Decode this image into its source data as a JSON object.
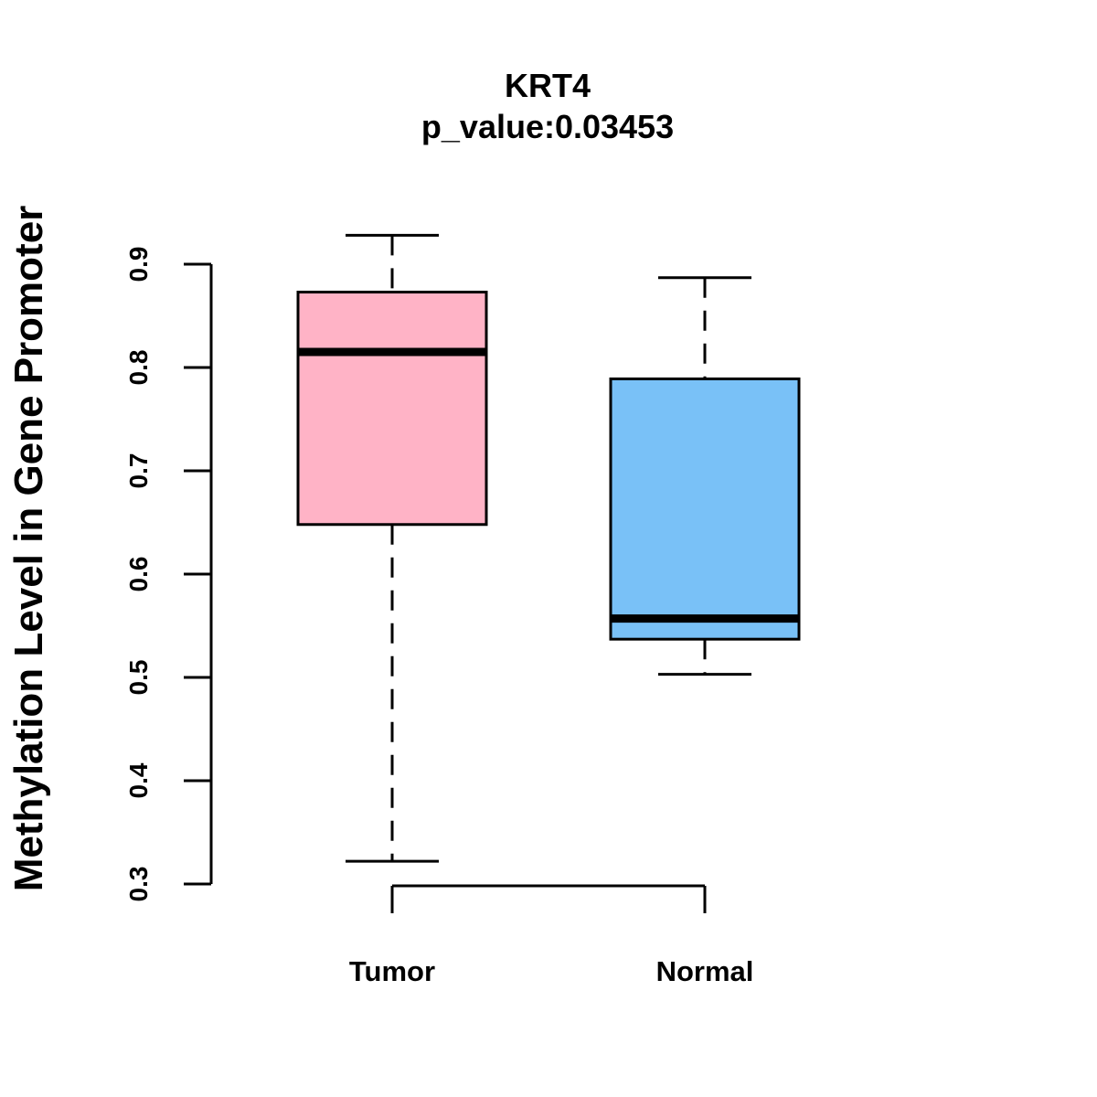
{
  "chart_data": {
    "type": "boxplot",
    "title": "KRT4",
    "subtitle": "p_value:0.03453",
    "ylabel": "Methylation Level in Gene Promoter",
    "xlabel": "",
    "ylim": [
      0.3,
      0.9
    ],
    "yticks": [
      0.3,
      0.4,
      0.5,
      0.6,
      0.7,
      0.8,
      0.9
    ],
    "ytick_labels": [
      "0.3",
      "0.4",
      "0.5",
      "0.6",
      "0.7",
      "0.8",
      "0.9"
    ],
    "categories": [
      "Tumor",
      "Normal"
    ],
    "boxes": [
      {
        "name": "Tumor",
        "min": 0.322,
        "q1": 0.648,
        "median": 0.815,
        "q3": 0.873,
        "max": 0.928,
        "color": "#FFB3C6"
      },
      {
        "name": "Normal",
        "min": 0.503,
        "q1": 0.537,
        "median": 0.557,
        "q3": 0.789,
        "max": 0.887,
        "color": "#79C1F7"
      }
    ]
  }
}
